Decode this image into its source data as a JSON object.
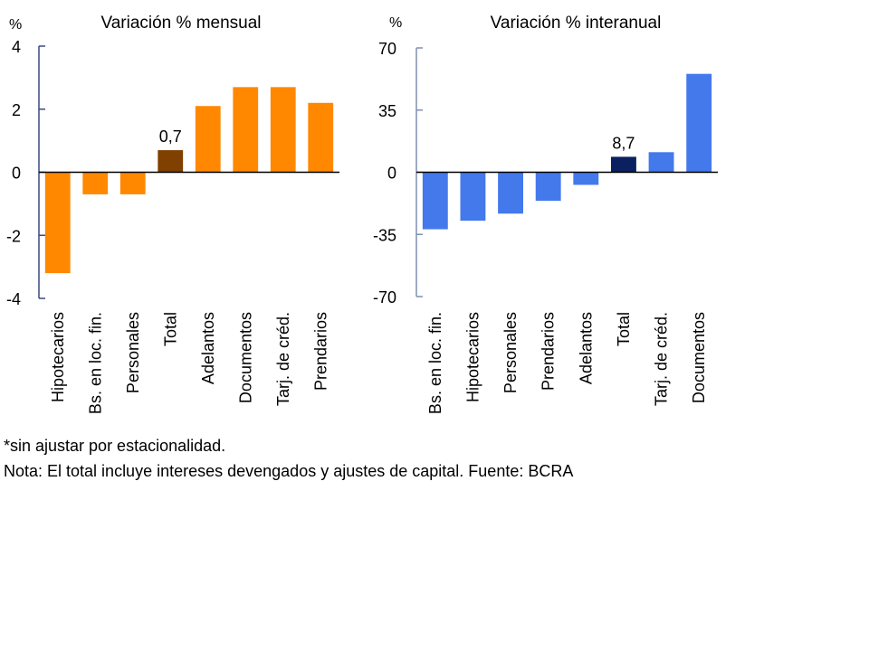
{
  "chart_data": [
    {
      "type": "bar",
      "title": "Variación % mensual",
      "ylabel": "%",
      "xlabel": "",
      "ylim": [
        -4,
        4
      ],
      "yticks": [
        4,
        2,
        0,
        -2,
        -4
      ],
      "grid": false,
      "categories": [
        "Hipotecarios",
        "Bs. en loc. fin.",
        "Personales",
        "Total",
        "Adelantos",
        "Documentos",
        "Tarj. de créd.",
        "Prendarios"
      ],
      "values": [
        -3.2,
        -0.7,
        -0.7,
        0.7,
        2.1,
        2.7,
        2.7,
        2.2
      ],
      "highlight_category": "Total",
      "highlight_label": "0,7",
      "colors": {
        "bar": "#ff8800",
        "highlight": "#7f4000",
        "axis": "#3a4a80"
      }
    },
    {
      "type": "bar",
      "title": "Variación % interanual",
      "ylabel": "%",
      "xlabel": "",
      "ylim": [
        -70,
        70
      ],
      "yticks": [
        70,
        35,
        0,
        -35,
        -70
      ],
      "grid": false,
      "categories": [
        "Bs. en loc. fin.",
        "Hipotecarios",
        "Personales",
        "Prendarios",
        "Adelantos",
        "Total",
        "Tarj. de créd.",
        "Documentos"
      ],
      "values": [
        -32.1,
        -27.3,
        -23.3,
        -16.1,
        -7.1,
        8.7,
        11.3,
        55.4
      ],
      "highlight_category": "Total",
      "highlight_label": "8,7",
      "colors": {
        "bar": "#4479ec",
        "highlight": "#0a2060",
        "axis": "#8090b0"
      }
    }
  ],
  "notes": {
    "line1": "*sin ajustar por estacionalidad.",
    "line2": "Nota: El total incluye intereses devengados y ajustes de capital. Fuente: BCRA"
  }
}
